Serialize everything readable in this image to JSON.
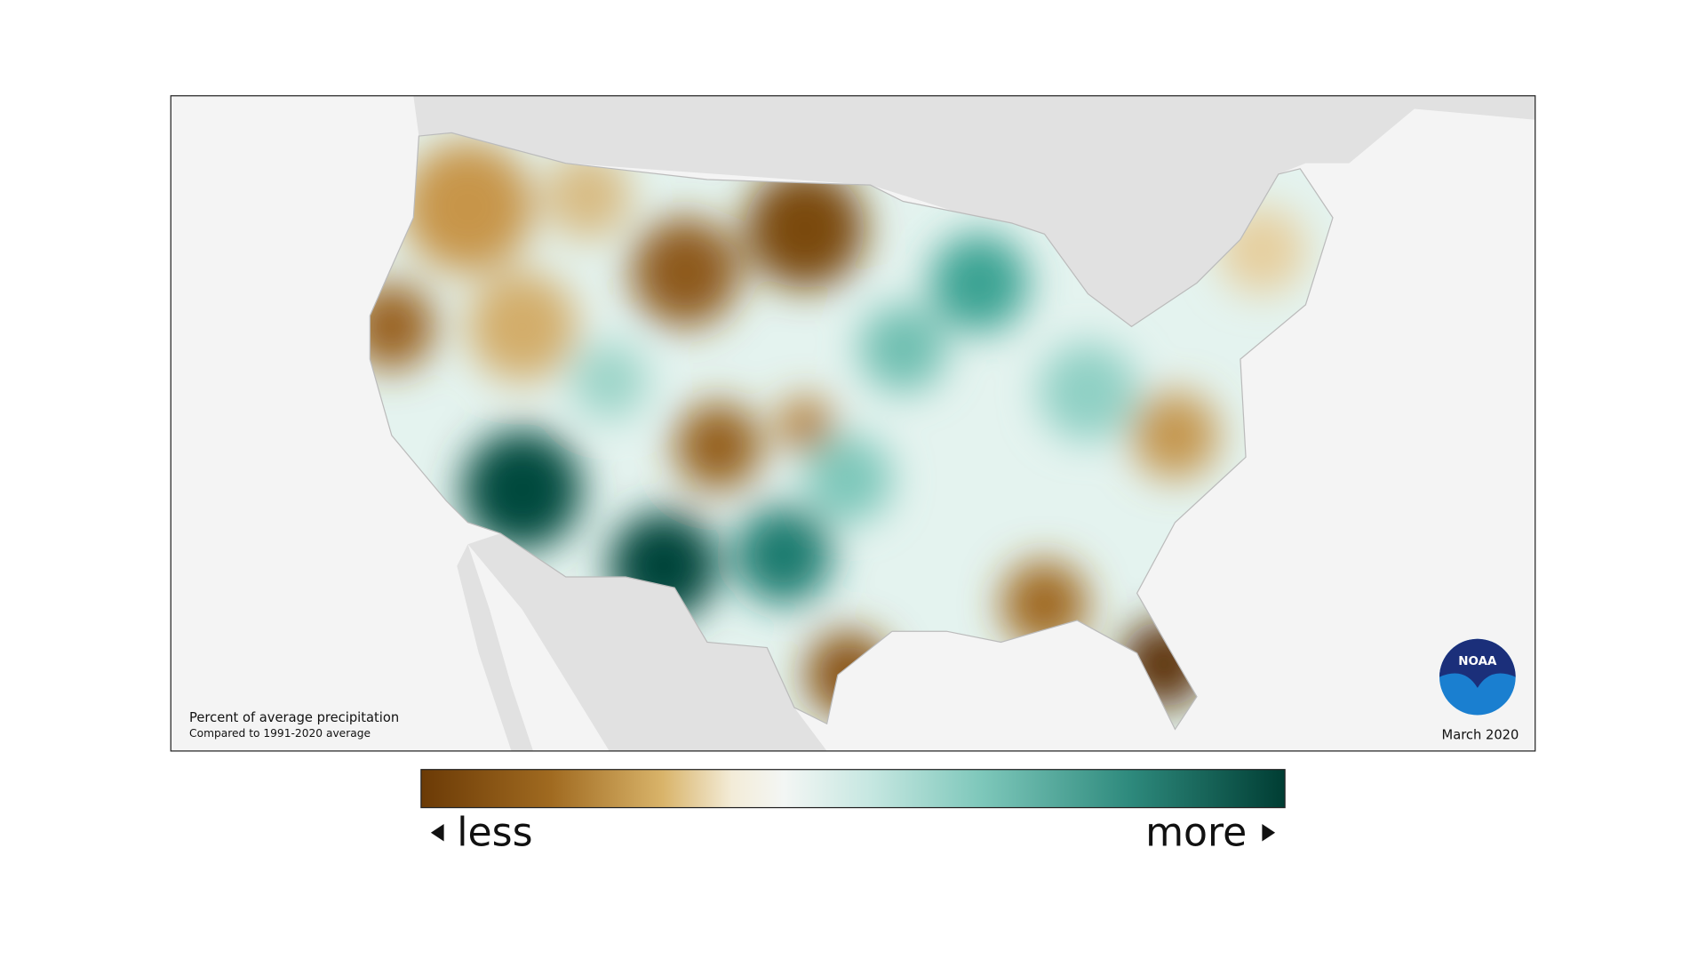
{
  "map": {
    "caption": "Percent of average precipitation",
    "subcaption": "Compared to 1991-2020 average",
    "date": "March 2020",
    "logo": "NOAA"
  },
  "legend": {
    "low": "less",
    "high": "more"
  }
}
